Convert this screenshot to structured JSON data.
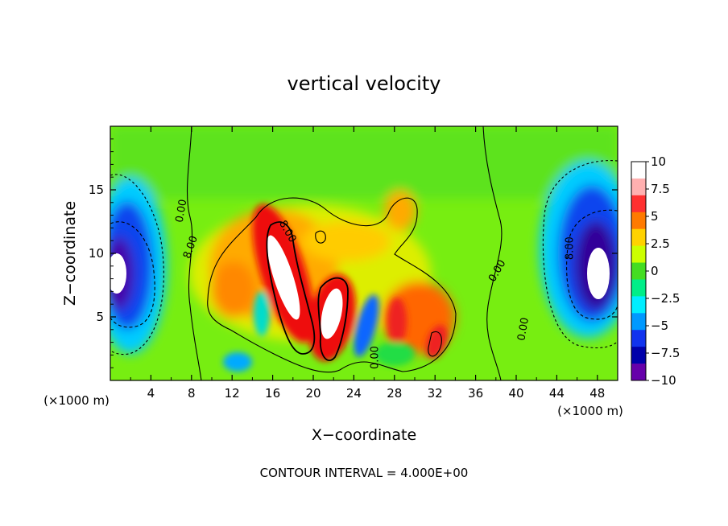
{
  "chart_data": {
    "type": "heatmap",
    "title": "vertical velocity",
    "xlabel": "X−coordinate",
    "ylabel": "Z−coordinate",
    "x_unit_left": "(×1000 m)",
    "x_unit_right": "(×1000 m)",
    "xlim": [
      0,
      50
    ],
    "ylim": [
      0,
      20
    ],
    "x_ticks": [
      "4",
      "8",
      "12",
      "16",
      "20",
      "24",
      "28",
      "32",
      "36",
      "40",
      "44",
      "48"
    ],
    "x_tick_values": [
      4,
      8,
      12,
      16,
      20,
      24,
      28,
      32,
      36,
      40,
      44,
      48
    ],
    "y_ticks": [
      "5",
      "10",
      "15"
    ],
    "y_tick_values": [
      5,
      10,
      15
    ],
    "colorbar": {
      "range": [
        -10,
        10
      ],
      "labels": [
        "10",
        "7.5",
        "5",
        "2.5",
        "0",
        "−2.5",
        "−5",
        "−7.5",
        "−10"
      ],
      "values": [
        10,
        7.5,
        5,
        2.5,
        0,
        -2.5,
        -5,
        -7.5,
        -10
      ],
      "colors": [
        "#ffffff",
        "#ffb0b0",
        "#ff3030",
        "#ff7a00",
        "#ffd200",
        "#ccff00",
        "#44dd22",
        "#00ee88",
        "#00eeff",
        "#0099ff",
        "#1133ee",
        "#0000aa",
        "#6600aa"
      ]
    },
    "contour_labels": [
      "8.00",
      "0.00",
      "8.00",
      "0.00",
      "8.00",
      "0.00",
      "0.00"
    ],
    "contour_interval_text": "CONTOUR INTERVAL = 4.000E+00",
    "features": [
      {
        "x": 17.2,
        "z": 9.0,
        "value": 10,
        "kind": "updraft"
      },
      {
        "x": 21.6,
        "z": 5.5,
        "value": 10,
        "kind": "updraft"
      },
      {
        "x": 31.5,
        "z": 3.2,
        "value": 8,
        "kind": "updraft"
      },
      {
        "x": 28.8,
        "z": 4.5,
        "value": 7,
        "kind": "updraft"
      },
      {
        "x": 13.0,
        "z": 7.0,
        "value": 6,
        "kind": "updraft"
      },
      {
        "x": 28.5,
        "z": 13.0,
        "value": 5,
        "kind": "updraft"
      },
      {
        "x": 3.0,
        "z": 9.5,
        "value": -10,
        "kind": "downdraft"
      },
      {
        "x": 47.0,
        "z": 8.5,
        "value": -10,
        "kind": "downdraft"
      },
      {
        "x": 25.0,
        "z": 4.0,
        "value": -6,
        "kind": "downdraft"
      },
      {
        "x": 12.0,
        "z": 2.0,
        "value": -4,
        "kind": "downdraft"
      }
    ]
  }
}
